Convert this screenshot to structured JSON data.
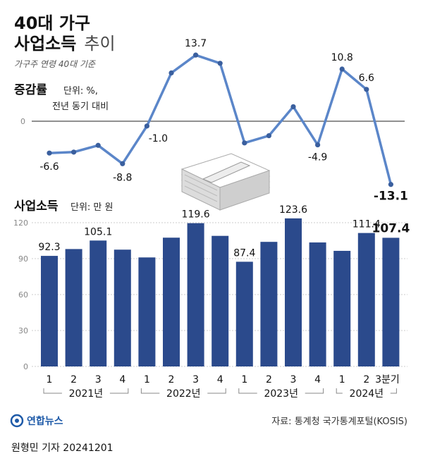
{
  "title": {
    "line1": "40대 가구",
    "line2_bold": "사업소득",
    "line2_light": "추이"
  },
  "subtitle": "가구주 연령 40대 기준",
  "credit": "원형민 기자  20241201",
  "source": "자료: 통계청 국가통계포털(KOSIS)",
  "logo_text": "연합뉴스",
  "colors": {
    "bar": "#2b4a8c",
    "line": "#5b86c9",
    "text": "#111111",
    "grid": "#cccccc"
  },
  "chart_data": [
    {
      "type": "line",
      "title": "증감률",
      "unit": "단위: %, 전년 동기 대비",
      "unit_line1": "단위: %,",
      "unit_line2": "전년 동기 대비",
      "zero_label": "0",
      "x": [
        "2021-1",
        "2021-2",
        "2021-3",
        "2021-4",
        "2022-1",
        "2022-2",
        "2022-3",
        "2022-4",
        "2023-1",
        "2023-2",
        "2023-3",
        "2023-4",
        "2024-1",
        "2024-2",
        "2024-3"
      ],
      "values": [
        -6.6,
        -6.4,
        -5.0,
        -8.8,
        -1.0,
        10.0,
        13.7,
        12.0,
        -4.5,
        -3.0,
        3.0,
        -4.9,
        10.8,
        6.6,
        -13.1
      ],
      "labels": [
        {
          "index": 0,
          "text": "-6.6"
        },
        {
          "index": 3,
          "text": "-8.8"
        },
        {
          "index": 4,
          "text": "-1.0"
        },
        {
          "index": 6,
          "text": "13.7"
        },
        {
          "index": 11,
          "text": "-4.9"
        },
        {
          "index": 12,
          "text": "10.8"
        },
        {
          "index": 13,
          "text": "6.6"
        },
        {
          "index": 14,
          "text": "-13.1",
          "bold": true
        }
      ],
      "ylim": [
        -16,
        17
      ]
    },
    {
      "type": "bar",
      "title": "사업소득",
      "unit": "단위: 만 원",
      "categories": [
        "1",
        "2",
        "3",
        "4",
        "1",
        "2",
        "3",
        "4",
        "1",
        "2",
        "3",
        "4",
        "1",
        "2",
        "3분기"
      ],
      "groups": [
        {
          "label": "2021년",
          "start": 0,
          "end": 3
        },
        {
          "label": "2022년",
          "start": 4,
          "end": 7
        },
        {
          "label": "2023년",
          "start": 8,
          "end": 11
        },
        {
          "label": "2024년",
          "start": 12,
          "end": 14
        }
      ],
      "values": [
        92.3,
        98.0,
        105.1,
        97.5,
        91.0,
        107.5,
        119.6,
        109.0,
        87.4,
        104.0,
        123.6,
        103.5,
        96.5,
        111.4,
        107.4
      ],
      "labels": [
        {
          "index": 0,
          "text": "92.3"
        },
        {
          "index": 2,
          "text": "105.1"
        },
        {
          "index": 6,
          "text": "119.6"
        },
        {
          "index": 8,
          "text": "87.4"
        },
        {
          "index": 10,
          "text": "123.6"
        },
        {
          "index": 13,
          "text": "111.4"
        },
        {
          "index": 14,
          "text": "107.4",
          "bold": true
        }
      ],
      "yticks": [
        0,
        30,
        60,
        90,
        120
      ],
      "ylim": [
        0,
        130
      ]
    }
  ]
}
